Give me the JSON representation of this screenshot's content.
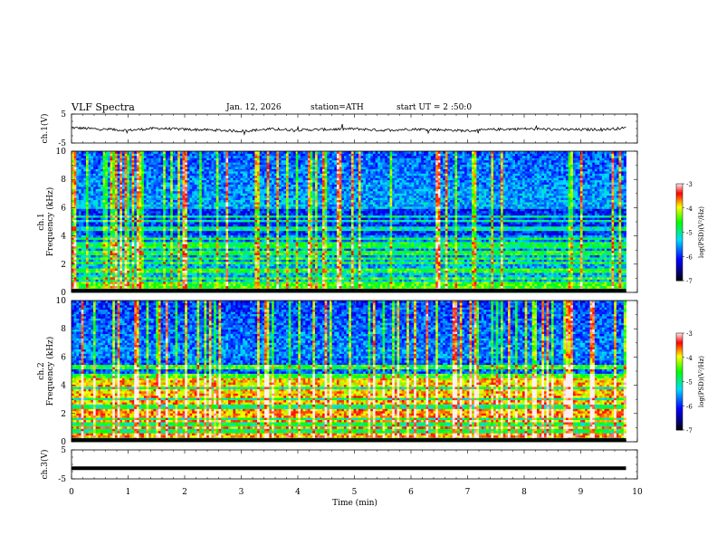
{
  "header": {
    "title": "VLF Spectra",
    "date": "Jan. 12, 2026",
    "station": "station=ATH",
    "start_ut": "start UT =  2 :50:0"
  },
  "colors": {
    "spectrogram_colormap": [
      "#000000",
      "#000080",
      "#0000ff",
      "#00ffff",
      "#00ff00",
      "#ffff00",
      "#ff0000",
      "#ffffff"
    ],
    "waveform": "#000000"
  },
  "chart_data": [
    {
      "type": "line",
      "panel": "ch1-waveform",
      "ylabel": "ch.1(V)",
      "ylim": [
        -5,
        5
      ],
      "yticks": [
        "5",
        "-5"
      ],
      "x": [
        0,
        0.5,
        1,
        1.5,
        2,
        2.5,
        3,
        3.5,
        4,
        4.5,
        5,
        5.5,
        6,
        6.5,
        7,
        7.5,
        8,
        8.5,
        9,
        9.5,
        9.8
      ],
      "y": [
        0.3,
        -0.2,
        -0.6,
        0.1,
        -0.3,
        -0.5,
        -0.9,
        -0.2,
        -0.5,
        -0.3,
        -0.1,
        -0.6,
        -0.2,
        -0.4,
        -0.8,
        -0.3,
        -0.1,
        -0.3,
        -0.4,
        -0.2,
        0.2
      ],
      "xlim": [
        0,
        10
      ]
    },
    {
      "type": "heatmap",
      "panel": "ch1-spectrogram",
      "channel_label": "ch.1",
      "ylabel": "Frequency (kHz)",
      "ylim": [
        0,
        10
      ],
      "yticks": [
        "0",
        "2",
        "4",
        "6",
        "8",
        "10"
      ],
      "xlim": [
        0,
        10
      ],
      "data_end_min": 9.8,
      "colorbar": {
        "label": "log(PSD)(V²/Hz)",
        "range": [
          -7,
          -3
        ],
        "ticks": [
          "-3",
          "-4",
          "-5",
          "-6",
          "-7"
        ]
      },
      "bands_khz": [
        0.3,
        0.6,
        1.0,
        1.6,
        2.1,
        2.4,
        2.8,
        3.2,
        3.4,
        3.8,
        4.5,
        5.1,
        5.4
      ]
    },
    {
      "type": "heatmap",
      "panel": "ch2-spectrogram",
      "channel_label": "ch.2",
      "ylabel": "Frequency (kHz)",
      "ylim": [
        0,
        10
      ],
      "yticks": [
        "0",
        "2",
        "4",
        "6",
        "8",
        "10"
      ],
      "xlim": [
        0,
        10
      ],
      "data_end_min": 9.8,
      "colorbar": {
        "label": "log(PSD)(V²/Hz)",
        "range": [
          -7,
          -3
        ],
        "ticks": [
          "-3",
          "-4",
          "-5",
          "-6",
          "-7"
        ]
      },
      "bands_khz": [
        0.5,
        1.0,
        1.5,
        1.9,
        2.1,
        2.3,
        2.8,
        3.3,
        3.6,
        4.1,
        4.4,
        4.7,
        5.3
      ]
    },
    {
      "type": "line",
      "panel": "ch3-waveform",
      "ylabel": "ch.3(V)",
      "ylim": [
        -5,
        5
      ],
      "yticks": [
        "5",
        "-5"
      ],
      "x": [
        0,
        9.8
      ],
      "y": [
        -1.3,
        -1.3
      ],
      "xlim": [
        0,
        10
      ],
      "xlabel": "Time (min)",
      "xticks": [
        "0",
        "1",
        "2",
        "3",
        "4",
        "5",
        "6",
        "7",
        "8",
        "9",
        "10"
      ]
    }
  ]
}
